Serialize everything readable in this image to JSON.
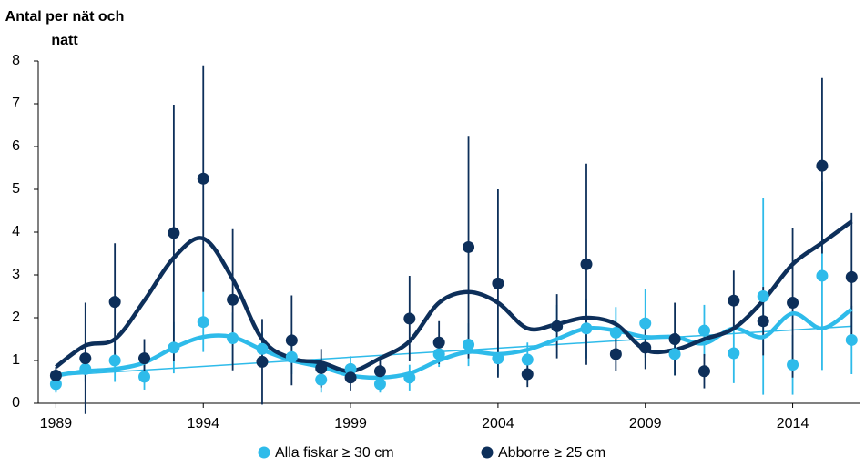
{
  "chart_data": {
    "type": "scatter",
    "y_label": "Antal per nät och natt",
    "x": [
      1989,
      1990,
      1991,
      1992,
      1993,
      1994,
      1995,
      1996,
      1997,
      1998,
      1999,
      2000,
      2001,
      2002,
      2003,
      2004,
      2005,
      2006,
      2007,
      2008,
      2009,
      2010,
      2011,
      2012,
      2013,
      2014,
      2015,
      2016
    ],
    "series": [
      {
        "name": "Alla fiskar ≥ 30 cm",
        "color": "#2ebbea",
        "values": [
          0.45,
          0.8,
          1.0,
          0.62,
          1.3,
          1.9,
          1.52,
          1.27,
          1.08,
          0.55,
          0.8,
          0.45,
          0.6,
          1.15,
          1.37,
          1.05,
          1.02,
          1.8,
          1.75,
          1.65,
          1.87,
          1.15,
          1.7,
          1.17,
          2.5,
          0.9,
          2.98,
          1.48
        ],
        "errors": [
          0.2,
          0.3,
          0.5,
          0.3,
          0.6,
          0.7,
          0.6,
          0.4,
          0.4,
          0.3,
          0.3,
          0.2,
          0.3,
          0.3,
          0.5,
          0.4,
          0.4,
          0.5,
          0.7,
          0.6,
          0.8,
          0.5,
          0.6,
          0.7,
          2.3,
          0.7,
          2.2,
          0.8
        ]
      },
      {
        "name": "Abborre ≥ 25 cm",
        "color": "#0d2f5a",
        "values": [
          0.65,
          1.05,
          2.37,
          1.05,
          3.98,
          5.25,
          2.42,
          0.97,
          1.47,
          0.82,
          0.6,
          0.75,
          1.98,
          1.42,
          3.65,
          2.8,
          0.68,
          1.8,
          3.25,
          1.15,
          1.3,
          1.5,
          0.75,
          2.4,
          1.92,
          2.35,
          5.55,
          2.95
        ],
        "errors": [
          0.2,
          1.3,
          1.37,
          0.45,
          3.0,
          2.65,
          1.65,
          1.0,
          1.05,
          0.45,
          0.3,
          0.25,
          1.0,
          0.5,
          2.6,
          2.2,
          0.3,
          0.75,
          2.35,
          0.4,
          0.5,
          0.85,
          0.4,
          0.7,
          0.8,
          1.75,
          2.05,
          1.5
        ]
      }
    ],
    "smooth_lines": [
      {
        "color": "#2ebbea",
        "values": [
          0.65,
          0.75,
          0.8,
          0.95,
          1.3,
          1.55,
          1.55,
          1.25,
          1.0,
          0.85,
          0.65,
          0.6,
          0.7,
          1.0,
          1.2,
          1.15,
          1.25,
          1.5,
          1.75,
          1.7,
          1.55,
          1.55,
          1.4,
          1.75,
          1.55,
          2.1,
          1.75,
          2.2
        ]
      },
      {
        "color": "#0d2f5a",
        "values": [
          0.85,
          1.35,
          1.5,
          2.4,
          3.4,
          3.85,
          2.9,
          1.5,
          1.05,
          0.95,
          0.75,
          1.05,
          1.45,
          2.35,
          2.6,
          2.35,
          1.75,
          1.85,
          2.0,
          1.85,
          1.25,
          1.25,
          1.5,
          1.75,
          2.4,
          3.25,
          3.75,
          4.25
        ]
      }
    ],
    "trend": {
      "color": "#2ebbea",
      "x": [
        1989,
        2016
      ],
      "values": [
        0.65,
        1.8
      ]
    },
    "xlim": [
      1988.4,
      2016.3
    ],
    "xticks": [
      1989,
      1994,
      1999,
      2004,
      2009,
      2014
    ],
    "ylim": [
      0,
      8
    ],
    "yticks": [
      0,
      1,
      2,
      3,
      4,
      5,
      6,
      7,
      8
    ],
    "grid": false,
    "legend": "bottom"
  }
}
